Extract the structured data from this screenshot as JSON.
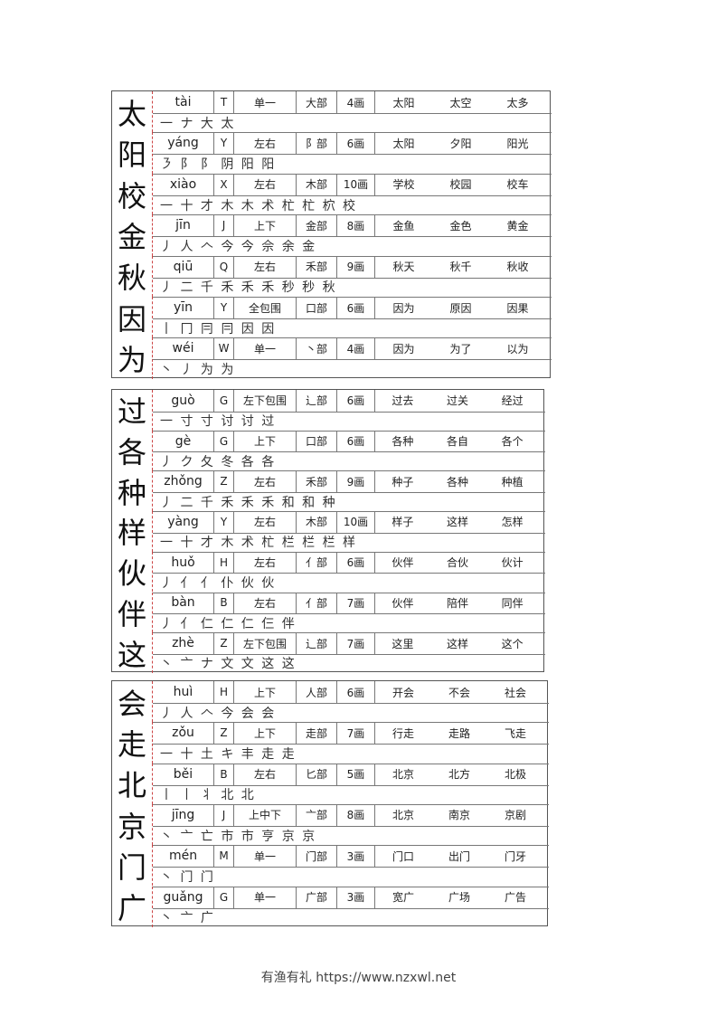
{
  "blocks": [
    {
      "entries": [
        {
          "char": "太",
          "pinyin": "tài",
          "initial": "T",
          "structure": "单一",
          "radical": "大部",
          "strokes": "4画",
          "words": [
            "太阳",
            "太空",
            "太多"
          ],
          "stroke_order": "一 ナ 大 太"
        },
        {
          "char": "阳",
          "pinyin": "yáng",
          "initial": "Y",
          "structure": "左右",
          "radical": "阝部",
          "strokes": "6画",
          "words": [
            "太阳",
            "夕阳",
            "阳光"
          ],
          "stroke_order": "㇋ 阝 阝 阴 阳 阳"
        },
        {
          "char": "校",
          "pinyin": "xiào",
          "initial": "X",
          "structure": "左右",
          "radical": "木部",
          "strokes": "10画",
          "words": [
            "学校",
            "校园",
            "校车"
          ],
          "stroke_order": "一 十 才 木 木 术 杧 杧 柼 校"
        },
        {
          "char": "金",
          "pinyin": "jīn",
          "initial": "J",
          "structure": "上下",
          "radical": "金部",
          "strokes": "8画",
          "words": [
            "金鱼",
            "金色",
            "黄金"
          ],
          "stroke_order": "丿 人 𠆢 今 今 佘 余 金"
        },
        {
          "char": "秋",
          "pinyin": "qiū",
          "initial": "Q",
          "structure": "左右",
          "radical": "禾部",
          "strokes": "9画",
          "words": [
            "秋天",
            "秋千",
            "秋收"
          ],
          "stroke_order": "丿 二 千 禾 禾 禾 秒 秒 秋"
        },
        {
          "char": "因",
          "pinyin": "yīn",
          "initial": "Y",
          "structure": "全包围",
          "radical": "口部",
          "strokes": "6画",
          "words": [
            "因为",
            "原因",
            "因果"
          ],
          "stroke_order": "丨 冂 冃 冃 因 因"
        },
        {
          "char": "为",
          "pinyin": "wéi",
          "initial": "W",
          "structure": "单一",
          "radical": "丶部",
          "strokes": "4画",
          "words": [
            "因为",
            "为了",
            "以为"
          ],
          "stroke_order": "丶 丿 为 为"
        }
      ]
    },
    {
      "entries": [
        {
          "char": "过",
          "pinyin": "guò",
          "initial": "G",
          "structure": "左下包围",
          "radical": "辶部",
          "strokes": "6画",
          "words": [
            "过去",
            "过关",
            "经过"
          ],
          "stroke_order": "一 寸 寸 讨 讨 过"
        },
        {
          "char": "各",
          "pinyin": "gè",
          "initial": "G",
          "structure": "上下",
          "radical": "口部",
          "strokes": "6画",
          "words": [
            "各种",
            "各自",
            "各个"
          ],
          "stroke_order": "丿 ク 夂 冬 各 各"
        },
        {
          "char": "种",
          "pinyin": "zhǒng",
          "initial": "Z",
          "structure": "左右",
          "radical": "禾部",
          "strokes": "9画",
          "words": [
            "种子",
            "各种",
            "种植"
          ],
          "stroke_order": "丿 二 千 禾 禾 禾 和 和 种"
        },
        {
          "char": "样",
          "pinyin": "yàng",
          "initial": "Y",
          "structure": "左右",
          "radical": "木部",
          "strokes": "10画",
          "words": [
            "样子",
            "这样",
            "怎样"
          ],
          "stroke_order": "一 十 才 木 术 杧 栏 栏 栏 样"
        },
        {
          "char": "伙",
          "pinyin": "huǒ",
          "initial": "H",
          "structure": "左右",
          "radical": "亻部",
          "strokes": "6画",
          "words": [
            "伙伴",
            "合伙",
            "伙计"
          ],
          "stroke_order": "丿 亻 亻 仆 伙 伙"
        },
        {
          "char": "伴",
          "pinyin": "bàn",
          "initial": "B",
          "structure": "左右",
          "radical": "亻部",
          "strokes": "7画",
          "words": [
            "伙伴",
            "陪伴",
            "同伴"
          ],
          "stroke_order": "丿 亻 仁 仁 仁 仨 伴"
        },
        {
          "char": "这",
          "pinyin": "zhè",
          "initial": "Z",
          "structure": "左下包围",
          "radical": "辶部",
          "strokes": "7画",
          "words": [
            "这里",
            "这样",
            "这个"
          ],
          "stroke_order": "丶 亠 ナ 文 文 这 这"
        }
      ]
    },
    {
      "entries": [
        {
          "char": "会",
          "pinyin": "huì",
          "initial": "H",
          "structure": "上下",
          "radical": "人部",
          "strokes": "6画",
          "words": [
            "开会",
            "不会",
            "社会"
          ],
          "stroke_order": "丿 人 𠆢 今 会 会"
        },
        {
          "char": "走",
          "pinyin": "zǒu",
          "initial": "Z",
          "structure": "上下",
          "radical": "走部",
          "strokes": "7画",
          "words": [
            "行走",
            "走路",
            "飞走"
          ],
          "stroke_order": "一 十 土 キ 丰 走 走"
        },
        {
          "char": "北",
          "pinyin": "běi",
          "initial": "B",
          "structure": "左右",
          "radical": "匕部",
          "strokes": "5画",
          "words": [
            "北京",
            "北方",
            "北极"
          ],
          "stroke_order": "丨 丨 丬 北 北"
        },
        {
          "char": "京",
          "pinyin": "jīng",
          "initial": "J",
          "structure": "上中下",
          "radical": "亠部",
          "strokes": "8画",
          "words": [
            "北京",
            "南京",
            "京剧"
          ],
          "stroke_order": "丶 亠 亡 市 市 亨 京 京"
        },
        {
          "char": "门",
          "pinyin": "mén",
          "initial": "M",
          "structure": "单一",
          "radical": "门部",
          "strokes": "3画",
          "words": [
            "门口",
            "出门",
            "门牙"
          ],
          "stroke_order": "丶 门 门"
        },
        {
          "char": "广",
          "pinyin": "guǎng",
          "initial": "G",
          "structure": "单一",
          "radical": "广部",
          "strokes": "3画",
          "words": [
            "宽广",
            "广场",
            "广告"
          ],
          "stroke_order": "丶 亠 广"
        }
      ]
    }
  ],
  "footer": "有渔有礼 https://www.nzxwl.net"
}
